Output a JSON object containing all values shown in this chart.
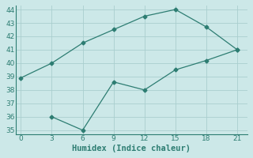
{
  "xlabel": "Humidex (Indice chaleur)",
  "line1_x": [
    0,
    3,
    6,
    9,
    12,
    15,
    18,
    21
  ],
  "line1_y": [
    38.9,
    40.0,
    41.5,
    42.5,
    43.5,
    44.0,
    42.7,
    41.0
  ],
  "line2_x": [
    3,
    6,
    9,
    12,
    15,
    18,
    21
  ],
  "line2_y": [
    36.0,
    35.0,
    38.6,
    38.0,
    39.5,
    40.2,
    41.0
  ],
  "line_color": "#2d7d72",
  "bg_color": "#cce8e8",
  "grid_color": "#aacece",
  "marker": "D",
  "marker_size": 2.5,
  "linewidth": 0.9,
  "xlim": [
    -0.5,
    22
  ],
  "ylim": [
    34.7,
    44.3
  ],
  "xticks": [
    0,
    3,
    6,
    9,
    12,
    15,
    18,
    21
  ],
  "yticks": [
    35,
    36,
    37,
    38,
    39,
    40,
    41,
    42,
    43,
    44
  ],
  "tick_fontsize": 6.5,
  "xlabel_fontsize": 7.5,
  "spine_color": "#2d7d72"
}
